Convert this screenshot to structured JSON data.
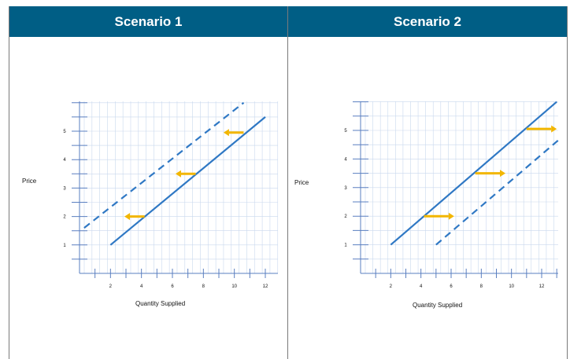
{
  "panels": [
    {
      "title": "Scenario 1"
    },
    {
      "title": "Scenario 2"
    }
  ],
  "colors": {
    "header_bg": "#005e85",
    "line": "#2f78c4",
    "arrow": "#f2b600",
    "grid": "#c9d8ee",
    "axis": "#5a7fc0"
  },
  "chart_data": [
    {
      "type": "line",
      "title": "Scenario 1",
      "xlabel": "Quantity  Supplied",
      "ylabel": "Price",
      "x_ticks": [
        2,
        4,
        6,
        8,
        10,
        12
      ],
      "y_ticks": [
        1,
        2,
        3,
        4,
        5
      ],
      "series": [
        {
          "style": "solid",
          "points": [
            [
              2,
              1
            ],
            [
              12,
              5.5
            ]
          ]
        },
        {
          "style": "dashed",
          "points": [
            [
              0.3,
              1.6
            ],
            [
              10.6,
              6
            ]
          ]
        }
      ],
      "arrows": [
        {
          "from": [
            4.2,
            2
          ],
          "to": [
            2.9,
            2
          ]
        },
        {
          "from": [
            7.5,
            3.5
          ],
          "to": [
            6.2,
            3.5
          ]
        },
        {
          "from": [
            10.6,
            4.95
          ],
          "to": [
            9.3,
            4.95
          ]
        }
      ]
    },
    {
      "type": "line",
      "title": "Scenario 2",
      "xlabel": "Quantity  Supplied",
      "ylabel": "Price",
      "x_ticks": [
        2,
        4,
        6,
        8,
        10,
        12
      ],
      "y_ticks": [
        1,
        2,
        3,
        4,
        5
      ],
      "series": [
        {
          "style": "solid",
          "points": [
            [
              2,
              1
            ],
            [
              13,
              6
            ]
          ]
        },
        {
          "style": "dashed",
          "points": [
            [
              5,
              1
            ],
            [
              13.2,
              4.7
            ]
          ]
        }
      ],
      "arrows": [
        {
          "from": [
            4.2,
            2
          ],
          "to": [
            6.2,
            2
          ]
        },
        {
          "from": [
            7.6,
            3.5
          ],
          "to": [
            9.6,
            3.5
          ]
        },
        {
          "from": [
            11,
            5.05
          ],
          "to": [
            13,
            5.05
          ]
        }
      ]
    }
  ]
}
